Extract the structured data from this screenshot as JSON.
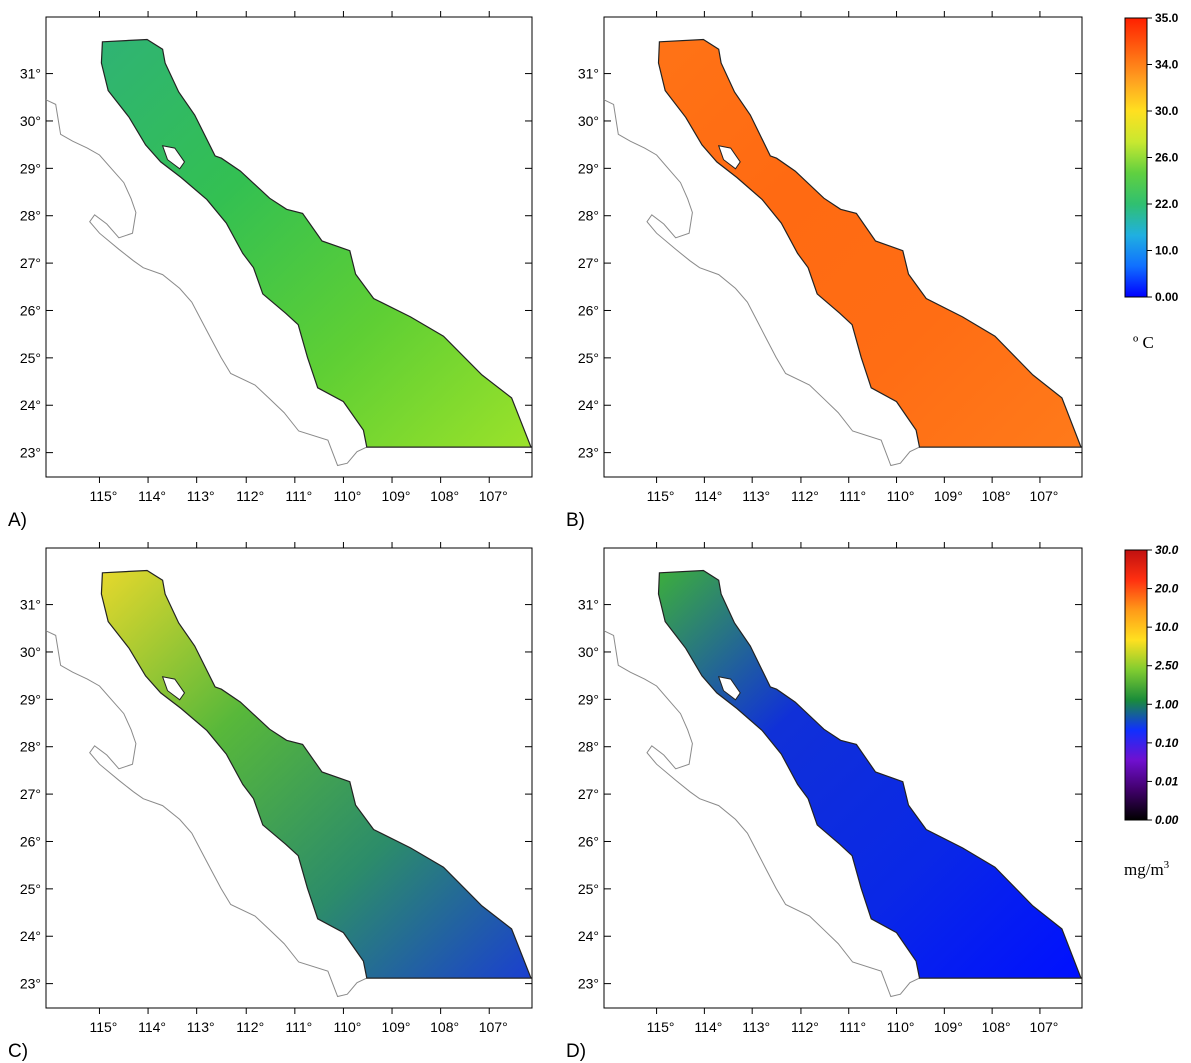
{
  "panels": [
    {
      "id": "A",
      "label": "A)",
      "variable": "sst",
      "colors": [
        "#2fb374",
        "#33c052",
        "#5fcf34",
        "#9be22a"
      ]
    },
    {
      "id": "B",
      "label": "B)",
      "variable": "sst",
      "colors": [
        "#ff7316",
        "#ff6a12",
        "#ff6d14",
        "#ff7a1a"
      ]
    },
    {
      "id": "C",
      "label": "C)",
      "variable": "chl",
      "colors": [
        "#e6d82c",
        "#58b83a",
        "#2c8c6a",
        "#1a3fd0"
      ]
    },
    {
      "id": "D",
      "label": "D)",
      "variable": "chl",
      "colors": [
        "#3cae3c",
        "#1030d8",
        "#0a28e6",
        "#0010ff"
      ]
    }
  ],
  "axes": {
    "lat_labels": [
      "23°",
      "24°",
      "25°",
      "26°",
      "27°",
      "28°",
      "29°",
      "30°",
      "31°"
    ],
    "lon_labels": [
      "115°",
      "114°",
      "113°",
      "112°",
      "111°",
      "110°",
      "109°",
      "108°",
      "107°"
    ]
  },
  "colorbars": {
    "sst": {
      "ticks": [
        "35.0",
        "34.0",
        "30.0",
        "26.0",
        "22.0",
        "10.0",
        "0.00"
      ],
      "unit": "º C",
      "colors": [
        "#0000ff",
        "#1070ff",
        "#20b0e0",
        "#30c070",
        "#60d040",
        "#c8e830",
        "#ffe020",
        "#ffa020",
        "#ff6010",
        "#ff2000"
      ]
    },
    "chl": {
      "ticks": [
        "30.0",
        "20.0",
        "10.0",
        "2.50",
        "1.00",
        "0.10",
        "0.01",
        "0.00"
      ],
      "unit": "mg/m",
      "unit_sup": "3",
      "colors": [
        "#000000",
        "#40006a",
        "#7010d0",
        "#1030ff",
        "#1a8c3a",
        "#80cc30",
        "#ffe020",
        "#ff9a18",
        "#ff3010",
        "#c01010"
      ]
    }
  }
}
